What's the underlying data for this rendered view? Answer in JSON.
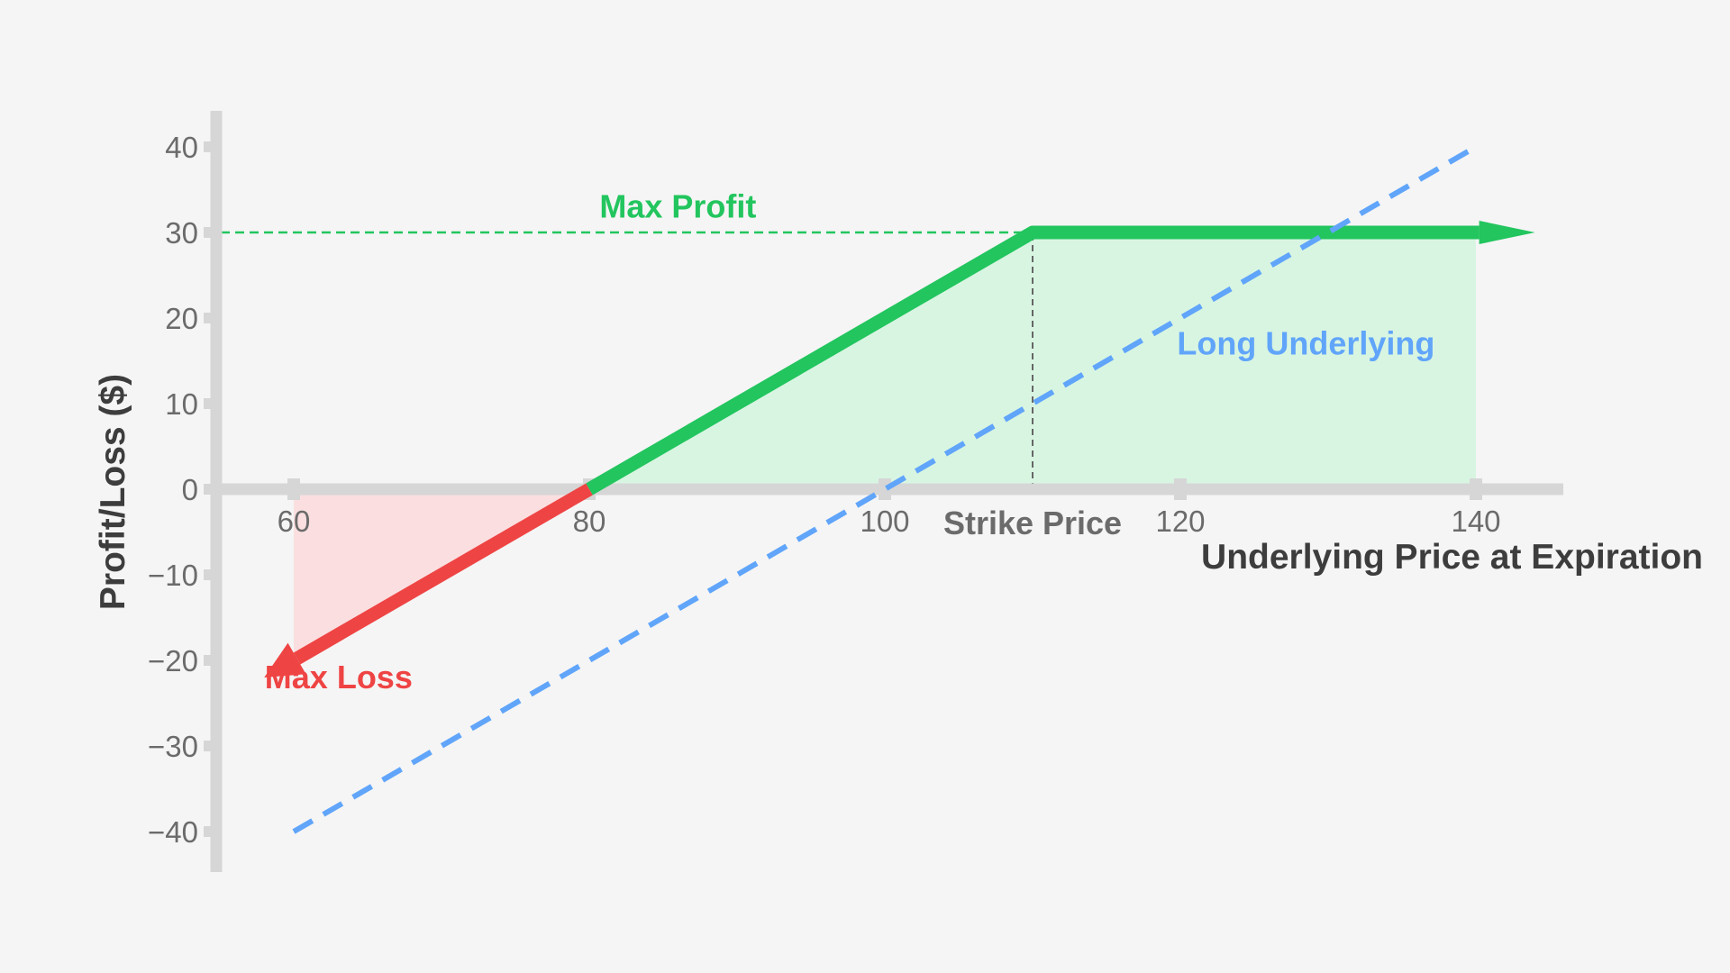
{
  "chart_data": {
    "type": "line",
    "title": "",
    "xlabel": "Underlying Price at Expiration",
    "ylabel": "Profit/Loss ($)",
    "xlim": [
      55,
      148
    ],
    "ylim": [
      -45,
      45
    ],
    "x_ticks": [
      60,
      80,
      100,
      120,
      140
    ],
    "x_tick_labels": [
      "60",
      "80",
      "100",
      "120",
      "140"
    ],
    "y_ticks": [
      40,
      30,
      20,
      10,
      0,
      -10,
      -20,
      -30,
      -40
    ],
    "y_tick_labels": [
      "40",
      "30",
      "20",
      "10",
      "0",
      "−10",
      "−20",
      "−30",
      "−40"
    ],
    "grid": false,
    "series": [
      {
        "name": "",
        "color": "#22c55e",
        "style": "solid",
        "x": [
          80,
          110,
          144
        ],
        "y": [
          0,
          30,
          30
        ]
      },
      {
        "name": "",
        "color": "#ef4444",
        "style": "solid",
        "x": [
          80,
          58
        ],
        "y": [
          0,
          -22
        ]
      },
      {
        "name": "Long Underlying",
        "color": "#60a5fa",
        "style": "dashed",
        "x": [
          60,
          140
        ],
        "y": [
          -40,
          40
        ]
      }
    ],
    "shaded_regions": [
      {
        "color": "#d8f5e2",
        "x": [
          80,
          110,
          140,
          140
        ],
        "y": [
          0,
          30,
          30,
          0
        ]
      },
      {
        "color": "#fbdfe0",
        "x": [
          60,
          80,
          60
        ],
        "y": [
          0,
          0,
          -20
        ]
      }
    ],
    "reference_lines": [
      {
        "kind": "horizontal",
        "y": 30,
        "x_range": [
          55,
          110
        ],
        "color": "#22c55e",
        "style": "dashed"
      },
      {
        "kind": "vertical",
        "x": 110,
        "y_range": [
          0,
          30
        ],
        "color": "#666666",
        "style": "dashed"
      }
    ],
    "annotations": [
      {
        "text": "Max Profit",
        "x": 86,
        "y": 33,
        "color": "#22c55e"
      },
      {
        "text": "Long Underlying",
        "x": 128.5,
        "y": 17,
        "color": "#60a5fa"
      },
      {
        "text": "Max Loss",
        "x": 67,
        "y": -22,
        "color": "#ef4444"
      },
      {
        "text": "Strike Price",
        "x": 110,
        "y": -4,
        "color": "#6b6b6b"
      }
    ]
  }
}
